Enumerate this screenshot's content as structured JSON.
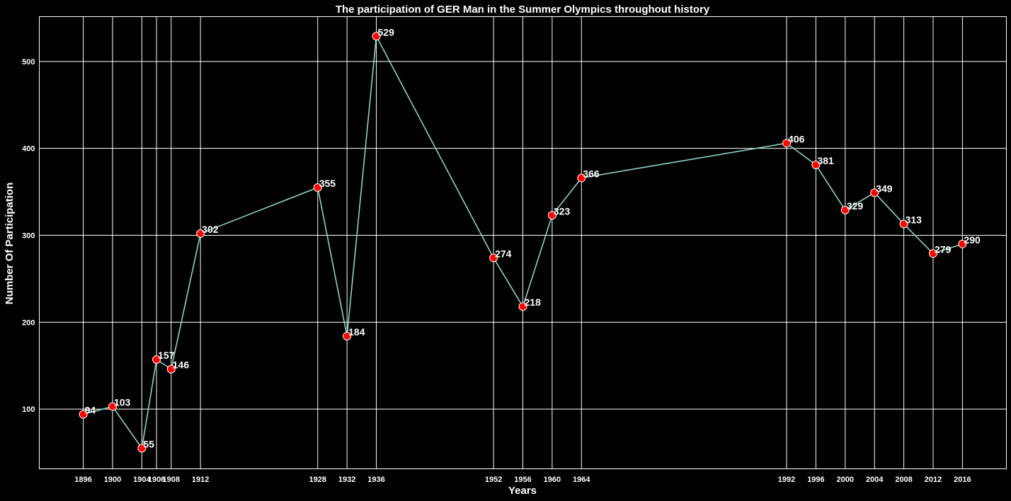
{
  "chart_data": {
    "type": "line",
    "title": "The participation of GER Man in the Summer Olympics throughout history",
    "xlabel": "Years",
    "ylabel": "Number Of Participation",
    "x": [
      1896,
      1900,
      1904,
      1906,
      1908,
      1912,
      1928,
      1932,
      1936,
      1952,
      1956,
      1960,
      1964,
      1992,
      1996,
      2000,
      2004,
      2008,
      2012,
      2016
    ],
    "series": [
      {
        "values": [
          94,
          103,
          55,
          157,
          146,
          302,
          355,
          184,
          529,
          274,
          218,
          323,
          366,
          406,
          381,
          329,
          349,
          313,
          279,
          290
        ]
      }
    ],
    "xticks": [
      "1896",
      "1900",
      "1904",
      "1906",
      "1908",
      "1912",
      "1928",
      "1932",
      "1936",
      "1952",
      "1956",
      "1960",
      "1964",
      "1992",
      "1996",
      "2000",
      "2004",
      "2008",
      "2012",
      "2016"
    ],
    "yticks": [
      100,
      200,
      300,
      400,
      500
    ],
    "xlim": [
      1890,
      2022
    ],
    "ylim": [
      31.3,
      551.6
    ],
    "grid": true,
    "background": "#000000",
    "line_color": "#8dd3c7",
    "marker_color": "#ff0000",
    "marker_edge_color": "#ffffff",
    "text_color": "#ffffff"
  }
}
